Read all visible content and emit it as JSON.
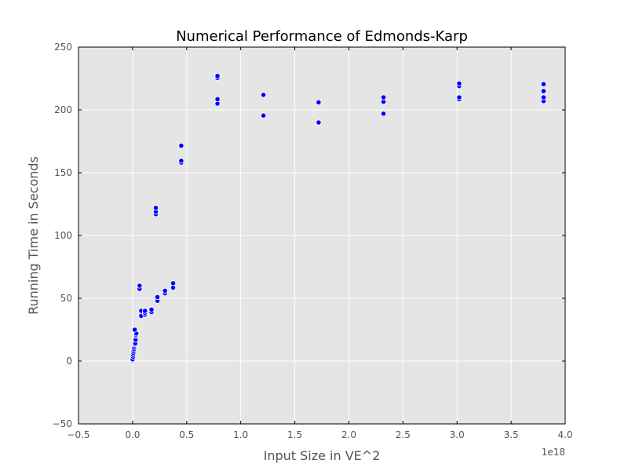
{
  "chart_data": {
    "type": "scatter",
    "title": "Numerical Performance of Edmonds-Karp",
    "xlabel": "Input Size in VE^2",
    "ylabel": "Running Time in Seconds",
    "x_offset_label": "1e18",
    "xlim": [
      -0.5,
      4.0
    ],
    "ylim": [
      -50,
      250
    ],
    "x_ticks": [
      -0.5,
      0.0,
      0.5,
      1.0,
      1.5,
      2.0,
      2.5,
      3.0,
      3.5,
      4.0
    ],
    "x_tick_labels": [
      "−0.5",
      "0.0",
      "0.5",
      "1.0",
      "1.5",
      "2.0",
      "2.5",
      "3.0",
      "3.5",
      "4.0"
    ],
    "y_ticks": [
      -50,
      0,
      50,
      100,
      150,
      200,
      250
    ],
    "y_tick_labels": [
      "−50",
      "0",
      "50",
      "100",
      "150",
      "200",
      "250"
    ],
    "grid": true,
    "colors": {
      "background": "#e5e5e5",
      "grid": "#ffffff",
      "marker": "#0000ff",
      "marker_edge": "#ffffff"
    },
    "points": [
      [
        0.0,
        0.3
      ],
      [
        0.0,
        0.8
      ],
      [
        0.0,
        1.5
      ],
      [
        0.005,
        3.5
      ],
      [
        0.005,
        5.0
      ],
      [
        0.008,
        6.5
      ],
      [
        0.01,
        8.0
      ],
      [
        0.012,
        9.5
      ],
      [
        0.015,
        11.0
      ],
      [
        0.02,
        12.5
      ],
      [
        0.022,
        13.5
      ],
      [
        0.025,
        14.0
      ],
      [
        0.028,
        17.0
      ],
      [
        0.03,
        20.0
      ],
      [
        0.032,
        21.0
      ],
      [
        0.035,
        22.0
      ],
      [
        0.02,
        25.0
      ],
      [
        0.065,
        57.5
      ],
      [
        0.065,
        60.0
      ],
      [
        0.08,
        36.0
      ],
      [
        0.08,
        40.0
      ],
      [
        0.115,
        37.0
      ],
      [
        0.115,
        38.5
      ],
      [
        0.115,
        40.0
      ],
      [
        0.175,
        39.0
      ],
      [
        0.175,
        41.0
      ],
      [
        0.215,
        117.0
      ],
      [
        0.215,
        119.0
      ],
      [
        0.215,
        122.0
      ],
      [
        0.23,
        48.0
      ],
      [
        0.23,
        51.0
      ],
      [
        0.3,
        54.0
      ],
      [
        0.3,
        56.0
      ],
      [
        0.375,
        58.5
      ],
      [
        0.375,
        62.0
      ],
      [
        0.45,
        158.0
      ],
      [
        0.45,
        159.5
      ],
      [
        0.45,
        171.5
      ],
      [
        0.785,
        205.0
      ],
      [
        0.785,
        208.5
      ],
      [
        0.785,
        225.5
      ],
      [
        0.785,
        227.0
      ],
      [
        1.21,
        195.5
      ],
      [
        1.21,
        212.0
      ],
      [
        1.72,
        189.5
      ],
      [
        1.72,
        190.0
      ],
      [
        1.72,
        206.0
      ],
      [
        2.32,
        197.0
      ],
      [
        2.32,
        206.5
      ],
      [
        2.32,
        210.0
      ],
      [
        3.02,
        208.5
      ],
      [
        3.02,
        210.0
      ],
      [
        3.02,
        219.0
      ],
      [
        3.02,
        221.0
      ],
      [
        3.8,
        207.0
      ],
      [
        3.8,
        210.0
      ],
      [
        3.8,
        215.0
      ],
      [
        3.8,
        220.5
      ]
    ]
  }
}
